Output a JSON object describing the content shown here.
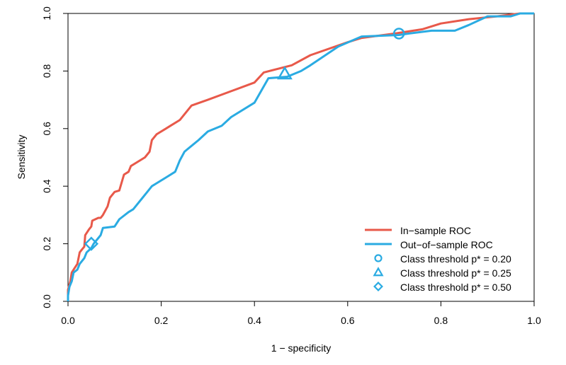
{
  "chart_data": {
    "type": "line",
    "title": "",
    "xlabel": "1 − specificity",
    "ylabel": "Sensitivity",
    "xlim": [
      0,
      1
    ],
    "ylim": [
      0,
      1
    ],
    "x_ticks": [
      "0.0",
      "0.2",
      "0.4",
      "0.6",
      "0.8",
      "1.0"
    ],
    "y_ticks": [
      "0.0",
      "0.2",
      "0.4",
      "0.6",
      "0.8",
      "1.0"
    ],
    "grid": false,
    "legend_position": "bottom-right",
    "series": [
      {
        "name": "In−sample ROC",
        "color": "#E8594A",
        "points": [
          [
            0,
            0
          ],
          [
            0,
            0.04
          ],
          [
            0.005,
            0.07
          ],
          [
            0.008,
            0.1
          ],
          [
            0.012,
            0.11
          ],
          [
            0.02,
            0.13
          ],
          [
            0.025,
            0.17
          ],
          [
            0.03,
            0.18
          ],
          [
            0.035,
            0.19
          ],
          [
            0.037,
            0.23
          ],
          [
            0.045,
            0.25
          ],
          [
            0.05,
            0.26
          ],
          [
            0.052,
            0.28
          ],
          [
            0.065,
            0.29
          ],
          [
            0.07,
            0.29
          ],
          [
            0.075,
            0.3
          ],
          [
            0.085,
            0.33
          ],
          [
            0.09,
            0.36
          ],
          [
            0.1,
            0.38
          ],
          [
            0.11,
            0.385
          ],
          [
            0.12,
            0.44
          ],
          [
            0.13,
            0.45
          ],
          [
            0.135,
            0.47
          ],
          [
            0.145,
            0.48
          ],
          [
            0.165,
            0.5
          ],
          [
            0.175,
            0.52
          ],
          [
            0.18,
            0.56
          ],
          [
            0.19,
            0.58
          ],
          [
            0.21,
            0.6
          ],
          [
            0.22,
            0.61
          ],
          [
            0.24,
            0.63
          ],
          [
            0.25,
            0.65
          ],
          [
            0.265,
            0.68
          ],
          [
            0.3,
            0.7
          ],
          [
            0.35,
            0.73
          ],
          [
            0.4,
            0.76
          ],
          [
            0.42,
            0.795
          ],
          [
            0.48,
            0.82
          ],
          [
            0.52,
            0.855
          ],
          [
            0.6,
            0.9
          ],
          [
            0.63,
            0.915
          ],
          [
            0.7,
            0.93
          ],
          [
            0.76,
            0.945
          ],
          [
            0.8,
            0.965
          ],
          [
            0.86,
            0.98
          ],
          [
            0.92,
            0.99
          ],
          [
            0.97,
            1.0
          ],
          [
            1.0,
            1.0
          ]
        ]
      },
      {
        "name": "Out−of−sample ROC",
        "color": "#2AABE2",
        "points": [
          [
            0,
            0
          ],
          [
            0,
            0.02
          ],
          [
            0.003,
            0.05
          ],
          [
            0.008,
            0.07
          ],
          [
            0.012,
            0.1
          ],
          [
            0.02,
            0.11
          ],
          [
            0.025,
            0.13
          ],
          [
            0.035,
            0.15
          ],
          [
            0.04,
            0.17
          ],
          [
            0.05,
            0.185
          ],
          [
            0.055,
            0.2
          ],
          [
            0.065,
            0.22
          ],
          [
            0.07,
            0.23
          ],
          [
            0.075,
            0.255
          ],
          [
            0.1,
            0.26
          ],
          [
            0.11,
            0.285
          ],
          [
            0.13,
            0.31
          ],
          [
            0.14,
            0.32
          ],
          [
            0.16,
            0.36
          ],
          [
            0.17,
            0.38
          ],
          [
            0.18,
            0.4
          ],
          [
            0.19,
            0.41
          ],
          [
            0.21,
            0.43
          ],
          [
            0.23,
            0.45
          ],
          [
            0.24,
            0.49
          ],
          [
            0.25,
            0.52
          ],
          [
            0.265,
            0.54
          ],
          [
            0.28,
            0.56
          ],
          [
            0.3,
            0.59
          ],
          [
            0.33,
            0.61
          ],
          [
            0.35,
            0.64
          ],
          [
            0.4,
            0.69
          ],
          [
            0.43,
            0.775
          ],
          [
            0.47,
            0.78
          ],
          [
            0.5,
            0.8
          ],
          [
            0.52,
            0.82
          ],
          [
            0.58,
            0.885
          ],
          [
            0.63,
            0.92
          ],
          [
            0.71,
            0.925
          ],
          [
            0.73,
            0.93
          ],
          [
            0.78,
            0.94
          ],
          [
            0.83,
            0.94
          ],
          [
            0.86,
            0.96
          ],
          [
            0.9,
            0.99
          ],
          [
            0.95,
            0.99
          ],
          [
            0.97,
            1.0
          ],
          [
            1.0,
            1.0
          ]
        ]
      }
    ],
    "thresholds": [
      {
        "label": "Class threshold p* = 0.20",
        "marker": "circle",
        "x": 0.71,
        "y": 0.93
      },
      {
        "label": "Class threshold p* = 0.25",
        "marker": "triangle",
        "x": 0.465,
        "y": 0.79
      },
      {
        "label": "Class threshold p* = 0.50",
        "marker": "diamond",
        "x": 0.05,
        "y": 0.2
      }
    ],
    "marker_color": "#2AABE2"
  }
}
